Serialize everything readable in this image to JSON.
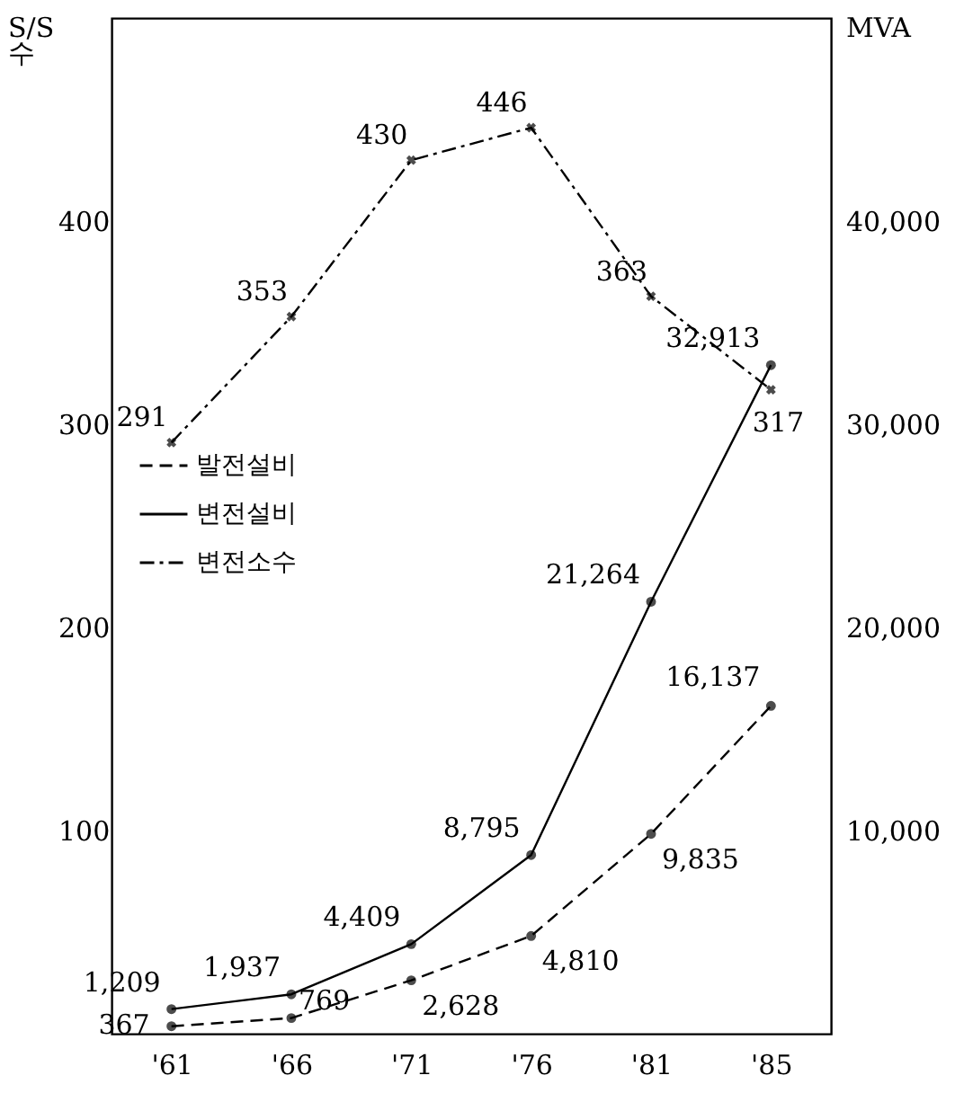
{
  "chart_data": {
    "type": "line",
    "categories": [
      "'61",
      "'66",
      "'71",
      "'76",
      "'81",
      "'85"
    ],
    "ylabel": "S/S 수",
    "y2label": "MVA",
    "ylim": [
      0,
      500
    ],
    "yticks": [
      100,
      200,
      300,
      400
    ],
    "y2lim": [
      0,
      50000
    ],
    "y2ticks": [
      {
        "value": 10000,
        "label": "10,000"
      },
      {
        "value": 20000,
        "label": "20,000"
      },
      {
        "value": 30000,
        "label": "30,000"
      },
      {
        "value": 40000,
        "label": "40,000"
      }
    ],
    "series": [
      {
        "name": "발전설비",
        "color": "#000000",
        "axis": "y2",
        "line_style": "dashed",
        "marker": "circle",
        "values": [
          367,
          769,
          2628,
          4810,
          9835,
          16137
        ],
        "value_labels": [
          "367",
          "769",
          "2,628",
          "4,810",
          "9,835",
          "16,137"
        ]
      },
      {
        "name": "변전설비",
        "color": "#000000",
        "axis": "y2",
        "line_style": "solid",
        "marker": "circle",
        "values": [
          1209,
          1937,
          4409,
          8795,
          21264,
          32913
        ],
        "value_labels": [
          "1,209",
          "1,937",
          "4,409",
          "8,795",
          "21,264",
          "32,913"
        ]
      },
      {
        "name": "변전소수",
        "color": "#000000",
        "line_style": "dotted",
        "marker": "cross",
        "values": [
          291,
          353,
          430,
          446,
          363,
          317
        ],
        "value_labels": [
          "291",
          "353",
          "430",
          "446",
          "363",
          "317"
        ]
      }
    ],
    "legend": "left",
    "grid": false
  }
}
